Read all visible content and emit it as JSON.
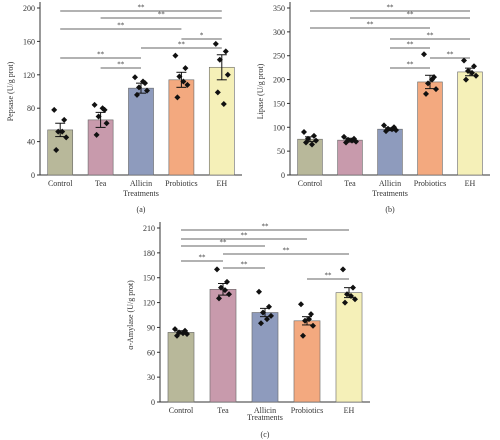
{
  "chart_data": [
    {
      "type": "bar",
      "panel_label": "(a)",
      "ylabel": "Pepsase (U/g prot)",
      "xlabel": "Treatments",
      "ylim": [
        0,
        200
      ],
      "yticks": [
        0,
        40,
        80,
        120,
        160,
        200
      ],
      "categories": [
        "Control",
        "Tea",
        "Allicin",
        "Probiotics",
        "EH"
      ],
      "values": [
        54,
        66,
        104,
        114,
        129
      ],
      "errors": [
        8,
        9,
        6,
        9,
        15
      ],
      "colors": [
        "#b8b89a",
        "#c89aac",
        "#8e9bbd",
        "#f3a97f",
        "#f5f0b8"
      ],
      "points": [
        [
          78,
          66,
          52,
          45,
          30,
          52
        ],
        [
          84,
          78,
          70,
          62,
          48,
          80
        ],
        [
          117,
          110,
          105,
          101,
          96,
          112
        ],
        [
          143,
          128,
          118,
          108,
          93,
          112
        ],
        [
          157,
          148,
          138,
          120,
          99,
          85
        ]
      ],
      "significance": [
        {
          "from": 0,
          "to": 4,
          "label": "**"
        },
        {
          "from": 1,
          "to": 4,
          "label": "**"
        },
        {
          "from": 0,
          "to": 3,
          "label": "**"
        },
        {
          "from": 3,
          "to": 4,
          "label": "*"
        },
        {
          "from": 2,
          "to": 4,
          "label": "**"
        },
        {
          "from": 0,
          "to": 2,
          "label": "**"
        },
        {
          "from": 1,
          "to": 2,
          "label": "**"
        }
      ]
    },
    {
      "type": "bar",
      "panel_label": "(b)",
      "ylabel": "Lipase (U/g prot)",
      "xlabel": "Treatments",
      "ylim": [
        0,
        350
      ],
      "yticks": [
        0,
        50,
        100,
        150,
        200,
        250,
        300,
        350
      ],
      "categories": [
        "Control",
        "Tea",
        "Allicin",
        "Probiotics",
        "EH"
      ],
      "values": [
        75,
        73,
        96,
        195,
        216
      ],
      "errors": [
        5,
        4,
        3,
        14,
        8
      ],
      "colors": [
        "#b8b89a",
        "#c89aac",
        "#8e9bbd",
        "#f3a97f",
        "#f5f0b8"
      ],
      "points": [
        [
          90,
          82,
          76,
          72,
          68,
          64
        ],
        [
          80,
          76,
          74,
          70,
          68,
          72
        ],
        [
          104,
          100,
          97,
          94,
          92,
          96
        ],
        [
          253,
          205,
          192,
          180,
          170,
          200
        ],
        [
          240,
          228,
          218,
          208,
          200,
          214
        ]
      ],
      "significance": [
        {
          "from": 0,
          "to": 4,
          "label": "**"
        },
        {
          "from": 1,
          "to": 4,
          "label": "**"
        },
        {
          "from": 0,
          "to": 3,
          "label": "**"
        },
        {
          "from": 2,
          "to": 4,
          "label": "**"
        },
        {
          "from": 2,
          "to": 3,
          "label": "**"
        },
        {
          "from": 3,
          "to": 4,
          "label": "**"
        },
        {
          "from": 2,
          "to": 3,
          "label": "**"
        }
      ]
    },
    {
      "type": "bar",
      "panel_label": "(c)",
      "ylabel": "α-Amylase (U/g prot)",
      "xlabel": "Treatments",
      "ylim": [
        0,
        210
      ],
      "yticks": [
        0,
        30,
        60,
        90,
        120,
        150,
        180,
        210
      ],
      "categories": [
        "Control",
        "Tea",
        "Allicin",
        "Probiotics",
        "EH"
      ],
      "values": [
        84,
        136,
        108,
        98,
        132
      ],
      "errors": [
        2,
        7,
        5,
        5,
        6
      ],
      "colors": [
        "#b8b89a",
        "#c89aac",
        "#8e9bbd",
        "#f3a97f",
        "#f5f0b8"
      ],
      "points": [
        [
          88,
          86,
          84,
          82,
          80,
          83
        ],
        [
          160,
          145,
          138,
          130,
          125,
          135
        ],
        [
          133,
          115,
          108,
          104,
          95,
          100
        ],
        [
          118,
          106,
          98,
          92,
          80,
          100
        ],
        [
          160,
          138,
          130,
          124,
          120,
          128
        ]
      ],
      "significance": [
        {
          "from": 0,
          "to": 4,
          "label": "**"
        },
        {
          "from": 0,
          "to": 3,
          "label": "**"
        },
        {
          "from": 0,
          "to": 2,
          "label": "**"
        },
        {
          "from": 1,
          "to": 4,
          "label": "**"
        },
        {
          "from": 0,
          "to": 1,
          "label": "**"
        },
        {
          "from": 1,
          "to": 2,
          "label": "**"
        },
        {
          "from": 3,
          "to": 4,
          "label": "**"
        }
      ]
    }
  ]
}
